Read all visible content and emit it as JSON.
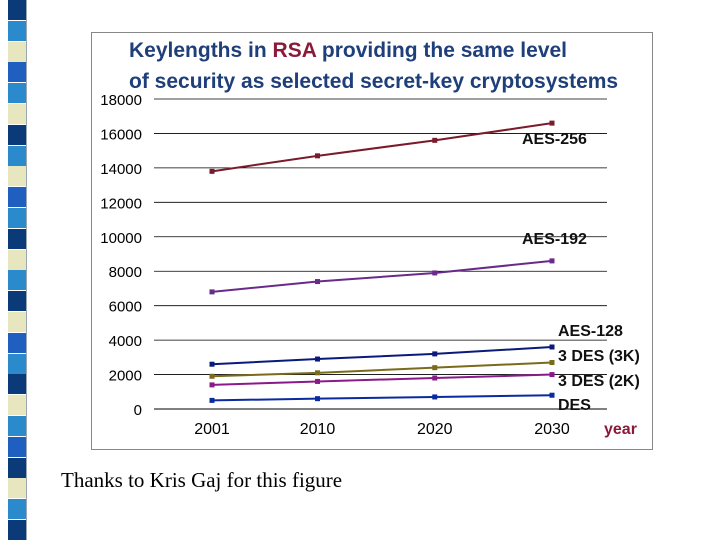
{
  "caption": "Thanks to Kris Gaj for this figure",
  "strip_colors": [
    "#0a3a78",
    "#2a8acb",
    "#e8e6bf",
    "#1f5fbf",
    "#2a8acb",
    "#e8e6bf",
    "#0a3a78",
    "#2a8acb",
    "#e8e6bf",
    "#1f5fbf",
    "#2a8acb",
    "#0a3a78",
    "#e8e6bf",
    "#2a8acb",
    "#0a3a78",
    "#e8e6bf",
    "#1f5fbf",
    "#2a8acb",
    "#0a3a78",
    "#e8e6bf",
    "#2a8acb",
    "#1f5fbf",
    "#0a3a78",
    "#e8e6bf",
    "#2a8acb",
    "#0a3a78"
  ],
  "chart_data": {
    "type": "line",
    "title_line1_parts": [
      "Keylengths in ",
      "RSA",
      " providing the same level"
    ],
    "title_line2": "of security as selected secret-key cryptosystems",
    "title_colors": {
      "main": "#1f3f7a",
      "accent": "#8b1a3a"
    },
    "x": [
      2001,
      2010,
      2020,
      2030
    ],
    "x_tick_labels": [
      "2001",
      "2010",
      "2020",
      "2030"
    ],
    "xlabel": "year",
    "xlabel_color": "#8b1a3a",
    "y_tick_labels": [
      "0",
      "2000",
      "4000",
      "6000",
      "8000",
      "10000",
      "12000",
      "14000",
      "16000",
      "18000"
    ],
    "ylim": [
      0,
      18000
    ],
    "grid": "horizontal",
    "series": [
      {
        "name": "AES-256",
        "values": [
          13800,
          14700,
          15600,
          16600
        ],
        "color": "#7a1a2a"
      },
      {
        "name": "AES-192",
        "values": [
          6800,
          7400,
          7900,
          8600
        ],
        "color": "#6a2a8a"
      },
      {
        "name": "AES-128",
        "values": [
          2600,
          2900,
          3200,
          3600
        ],
        "color": "#0a1a7a"
      },
      {
        "name": "3 DES (3K)",
        "values": [
          1900,
          2100,
          2400,
          2700
        ],
        "color": "#7a6a1a"
      },
      {
        "name": "3 DES (2K)",
        "values": [
          1400,
          1600,
          1800,
          2000
        ],
        "color": "#8a1a8a"
      },
      {
        "name": "DES",
        "values": [
          500,
          600,
          700,
          800
        ],
        "color": "#0a2aa0"
      }
    ]
  }
}
